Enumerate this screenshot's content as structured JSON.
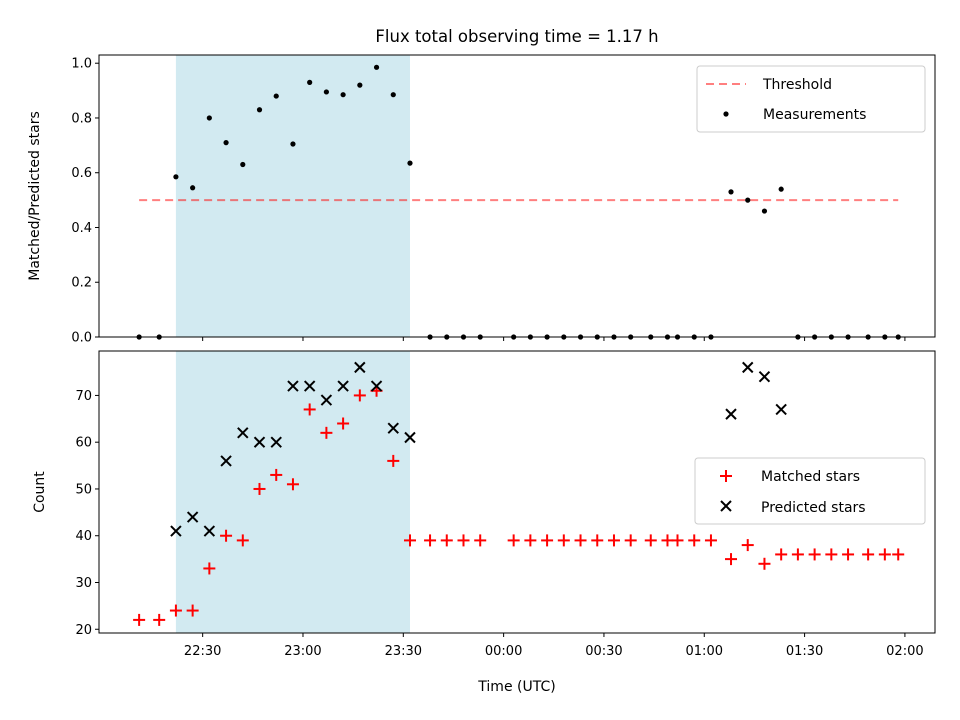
{
  "chart_data": [
    {
      "type": "scatter",
      "title": "Flux total observing time = 1.17 h",
      "xlabel": "",
      "ylabel": "Matched/Predicted stars",
      "ylim": [
        0,
        1.03
      ],
      "yticks": [
        "0.0",
        "0.2",
        "0.4",
        "0.6",
        "0.8",
        "1.0"
      ],
      "legend_position": "top-right",
      "highlight_span": {
        "start": "22:22",
        "end": "23:32",
        "color": "#add8e6"
      },
      "threshold": {
        "name": "Threshold",
        "value": 0.5,
        "x_start": "22:11",
        "x_end": "01:58",
        "color": "#ff0000"
      },
      "series": [
        {
          "name": "Measurements",
          "color": "#000000",
          "points": [
            [
              "22:11",
              0.0
            ],
            [
              "22:17",
              0.0
            ],
            [
              "22:22",
              0.585
            ],
            [
              "22:27",
              0.545
            ],
            [
              "22:32",
              0.8
            ],
            [
              "22:37",
              0.71
            ],
            [
              "22:42",
              0.63
            ],
            [
              "22:47",
              0.83
            ],
            [
              "22:52",
              0.88
            ],
            [
              "22:57",
              0.705
            ],
            [
              "23:02",
              0.93
            ],
            [
              "23:07",
              0.895
            ],
            [
              "23:12",
              0.885
            ],
            [
              "23:17",
              0.92
            ],
            [
              "23:22",
              0.985
            ],
            [
              "23:27",
              0.885
            ],
            [
              "23:32",
              0.635
            ],
            [
              "23:38",
              0.0
            ],
            [
              "23:43",
              0.0
            ],
            [
              "23:48",
              0.0
            ],
            [
              "23:53",
              0.0
            ],
            [
              "00:03",
              0.0
            ],
            [
              "00:08",
              0.0
            ],
            [
              "00:13",
              0.0
            ],
            [
              "00:18",
              0.0
            ],
            [
              "00:23",
              0.0
            ],
            [
              "00:28",
              0.0
            ],
            [
              "00:33",
              0.0
            ],
            [
              "00:38",
              0.0
            ],
            [
              "00:44",
              0.0
            ],
            [
              "00:49",
              0.0
            ],
            [
              "00:52",
              0.0
            ],
            [
              "00:57",
              0.0
            ],
            [
              "01:02",
              0.0
            ],
            [
              "01:08",
              0.53
            ],
            [
              "01:13",
              0.5
            ],
            [
              "01:18",
              0.46
            ],
            [
              "01:23",
              0.54
            ],
            [
              "01:28",
              0.0
            ],
            [
              "01:33",
              0.0
            ],
            [
              "01:38",
              0.0
            ],
            [
              "01:43",
              0.0
            ],
            [
              "01:49",
              0.0
            ],
            [
              "01:54",
              0.0
            ],
            [
              "01:58",
              0.0
            ]
          ]
        }
      ]
    },
    {
      "type": "scatter",
      "title": "",
      "xlabel": "Time (UTC)",
      "ylabel": "Count",
      "ylim": [
        19.2,
        79.5
      ],
      "yticks": [
        "20",
        "30",
        "40",
        "50",
        "60",
        "70"
      ],
      "xticks": [
        "22:30",
        "23:00",
        "23:30",
        "00:00",
        "00:30",
        "01:00",
        "01:30",
        "02:00"
      ],
      "legend_position": "center-right",
      "highlight_span": {
        "start": "22:22",
        "end": "23:32",
        "color": "#add8e6"
      },
      "series": [
        {
          "name": "Matched stars",
          "color": "#ff0000",
          "marker": "plus",
          "points": [
            [
              "22:11",
              22
            ],
            [
              "22:17",
              22
            ],
            [
              "22:22",
              24
            ],
            [
              "22:27",
              24
            ],
            [
              "22:32",
              33
            ],
            [
              "22:37",
              40
            ],
            [
              "22:42",
              39
            ],
            [
              "22:47",
              50
            ],
            [
              "22:52",
              53
            ],
            [
              "22:57",
              51
            ],
            [
              "23:02",
              67
            ],
            [
              "23:07",
              62
            ],
            [
              "23:12",
              64
            ],
            [
              "23:17",
              70
            ],
            [
              "23:22",
              71
            ],
            [
              "23:27",
              56
            ],
            [
              "23:32",
              39
            ],
            [
              "23:38",
              39
            ],
            [
              "23:43",
              39
            ],
            [
              "23:48",
              39
            ],
            [
              "23:53",
              39
            ],
            [
              "00:03",
              39
            ],
            [
              "00:08",
              39
            ],
            [
              "00:13",
              39
            ],
            [
              "00:18",
              39
            ],
            [
              "00:23",
              39
            ],
            [
              "00:28",
              39
            ],
            [
              "00:33",
              39
            ],
            [
              "00:38",
              39
            ],
            [
              "00:44",
              39
            ],
            [
              "00:49",
              39
            ],
            [
              "00:52",
              39
            ],
            [
              "00:57",
              39
            ],
            [
              "01:02",
              39
            ],
            [
              "01:08",
              35
            ],
            [
              "01:13",
              38
            ],
            [
              "01:18",
              34
            ],
            [
              "01:23",
              36
            ],
            [
              "01:28",
              36
            ],
            [
              "01:33",
              36
            ],
            [
              "01:38",
              36
            ],
            [
              "01:43",
              36
            ],
            [
              "01:49",
              36
            ],
            [
              "01:54",
              36
            ],
            [
              "01:58",
              36
            ]
          ]
        },
        {
          "name": "Predicted stars",
          "color": "#000000",
          "marker": "x",
          "points": [
            [
              "22:22",
              41
            ],
            [
              "22:27",
              44
            ],
            [
              "22:32",
              41
            ],
            [
              "22:37",
              56
            ],
            [
              "22:42",
              62
            ],
            [
              "22:47",
              60
            ],
            [
              "22:52",
              60
            ],
            [
              "22:57",
              72
            ],
            [
              "23:02",
              72
            ],
            [
              "23:07",
              69
            ],
            [
              "23:12",
              72
            ],
            [
              "23:17",
              76
            ],
            [
              "23:22",
              72
            ],
            [
              "23:27",
              63
            ],
            [
              "23:32",
              61
            ],
            [
              "01:08",
              66
            ],
            [
              "01:13",
              76
            ],
            [
              "01:18",
              74
            ],
            [
              "01:23",
              67
            ]
          ]
        }
      ]
    }
  ]
}
